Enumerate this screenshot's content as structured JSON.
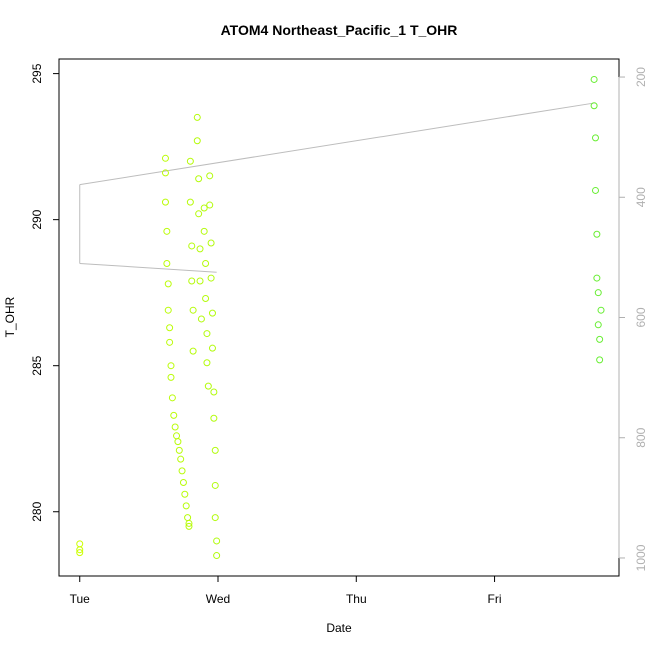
{
  "chart_data": {
    "type": "scatter",
    "title": "ATOM4 Northeast_Pacific_1 T_OHR",
    "xlabel": "Date",
    "ylabel": "T_OHR",
    "x_ticks": [
      "Tue",
      "Wed",
      "Thu",
      "Fri"
    ],
    "x_range_days": [
      -0.15,
      3.9
    ],
    "ylim": [
      277.8,
      295.5
    ],
    "y_ticks": [
      280,
      285,
      290,
      295
    ],
    "y2_ticks": [
      200,
      400,
      600,
      800,
      1000
    ],
    "y2_lim": [
      1030,
      170
    ],
    "grid": false,
    "legend": "none",
    "point_gradient": [
      "#ccff00",
      "#66ee33"
    ],
    "line_color": "#bdbdbd",
    "series": [
      {
        "points": [
          [
            0.0,
            278.9
          ],
          [
            0.0,
            278.7
          ],
          [
            0.0,
            278.6
          ],
          [
            0.62,
            292.1
          ],
          [
            0.62,
            291.6
          ],
          [
            0.62,
            290.6
          ],
          [
            0.63,
            289.6
          ],
          [
            0.63,
            288.5
          ],
          [
            0.64,
            287.8
          ],
          [
            0.64,
            286.9
          ],
          [
            0.65,
            286.3
          ],
          [
            0.65,
            285.8
          ],
          [
            0.66,
            285.0
          ],
          [
            0.66,
            284.6
          ],
          [
            0.67,
            283.9
          ],
          [
            0.68,
            283.3
          ],
          [
            0.69,
            282.9
          ],
          [
            0.7,
            282.6
          ],
          [
            0.71,
            282.4
          ],
          [
            0.72,
            282.1
          ],
          [
            0.73,
            281.8
          ],
          [
            0.74,
            281.4
          ],
          [
            0.75,
            281.0
          ],
          [
            0.76,
            280.6
          ],
          [
            0.77,
            280.2
          ],
          [
            0.78,
            279.8
          ],
          [
            0.79,
            279.5
          ],
          [
            0.79,
            279.6
          ],
          [
            0.8,
            292.0
          ],
          [
            0.8,
            290.6
          ],
          [
            0.81,
            289.1
          ],
          [
            0.81,
            287.9
          ],
          [
            0.82,
            286.9
          ],
          [
            0.82,
            285.5
          ],
          [
            0.85,
            293.5
          ],
          [
            0.85,
            292.7
          ],
          [
            0.86,
            291.4
          ],
          [
            0.86,
            290.2
          ],
          [
            0.87,
            289.0
          ],
          [
            0.87,
            287.9
          ],
          [
            0.88,
            286.6
          ],
          [
            0.9,
            290.4
          ],
          [
            0.9,
            289.6
          ],
          [
            0.91,
            288.5
          ],
          [
            0.91,
            287.3
          ],
          [
            0.92,
            286.1
          ],
          [
            0.92,
            285.1
          ],
          [
            0.93,
            284.3
          ],
          [
            0.94,
            291.5
          ],
          [
            0.94,
            290.5
          ],
          [
            0.95,
            289.2
          ],
          [
            0.95,
            288.0
          ],
          [
            0.96,
            286.8
          ],
          [
            0.96,
            285.6
          ],
          [
            0.97,
            284.1
          ],
          [
            0.97,
            283.2
          ],
          [
            0.98,
            282.1
          ],
          [
            0.98,
            280.9
          ],
          [
            0.98,
            279.8
          ],
          [
            0.99,
            279.0
          ],
          [
            0.99,
            278.5
          ],
          [
            3.72,
            294.8
          ],
          [
            3.72,
            293.9
          ],
          [
            3.73,
            292.8
          ],
          [
            3.73,
            291.0
          ],
          [
            3.74,
            289.5
          ],
          [
            3.74,
            288.0
          ],
          [
            3.75,
            287.5
          ],
          [
            3.75,
            286.4
          ],
          [
            3.76,
            285.9
          ],
          [
            3.76,
            285.2
          ],
          [
            3.77,
            286.9
          ]
        ]
      }
    ],
    "profile_lines": [
      [
        [
          0.0,
          291.2
        ],
        [
          3.73,
          294.0
        ]
      ],
      [
        [
          0.0,
          288.5
        ],
        [
          0.99,
          288.2
        ]
      ],
      [
        [
          0.0,
          291.2
        ],
        [
          0.0,
          288.5
        ]
      ]
    ]
  }
}
